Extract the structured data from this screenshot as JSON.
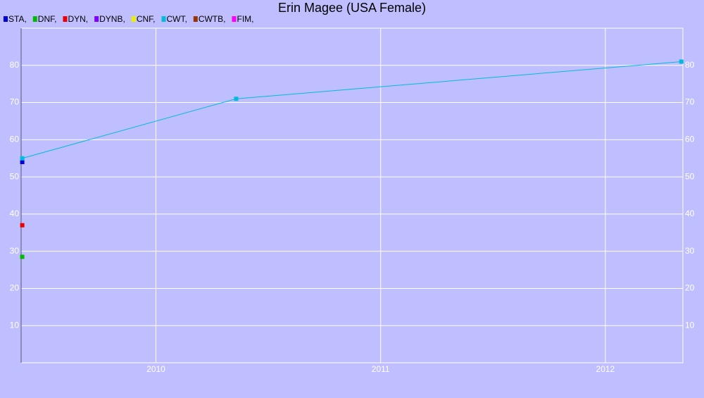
{
  "chart_data": {
    "type": "line",
    "title": "Erin Magee (USA Female)",
    "xlim": [
      2009.4,
      2012.345
    ],
    "xticks": [
      2010,
      2011,
      2012
    ],
    "ylim": [
      0,
      90
    ],
    "yticks": [
      10,
      20,
      30,
      40,
      50,
      60,
      70,
      80
    ],
    "grid": true,
    "series": [
      {
        "name": "STA,",
        "color": "#0000dd",
        "x": [
          2009.405
        ],
        "values": [
          54
        ]
      },
      {
        "name": "DNF,",
        "color": "#00bb00",
        "x": [
          2009.405
        ],
        "values": [
          28.5
        ]
      },
      {
        "name": "DYN,",
        "color": "#ee0000",
        "x": [
          2009.405
        ],
        "values": [
          37
        ]
      },
      {
        "name": "DYNB,",
        "color": "#7f00ff",
        "x": [],
        "values": []
      },
      {
        "name": "CNF,",
        "color": "#eeee00",
        "x": [],
        "values": []
      },
      {
        "name": "CWT,",
        "color": "#00bbdd",
        "x": [
          2009.405,
          2010.357,
          2012.338
        ],
        "values": [
          55,
          71,
          81
        ]
      },
      {
        "name": "CWTB,",
        "color": "#993300",
        "x": [],
        "values": []
      },
      {
        "name": "FIM,",
        "color": "#ff00ff",
        "x": [],
        "values": []
      }
    ]
  }
}
